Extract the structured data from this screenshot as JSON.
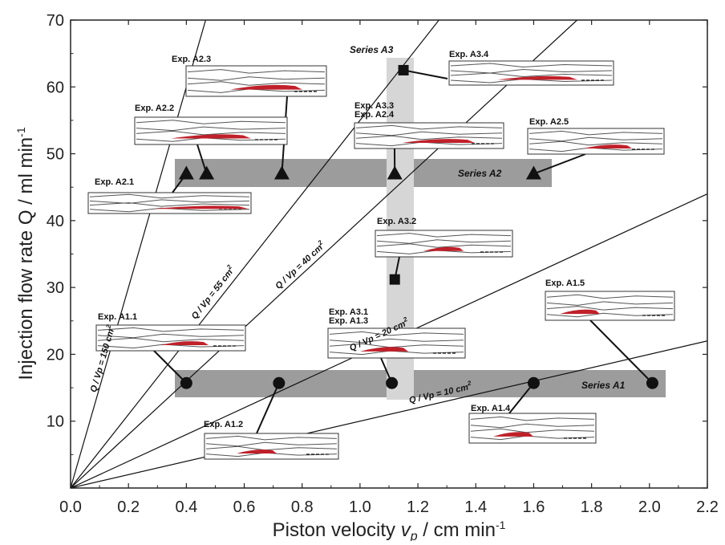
{
  "chart_data": {
    "type": "scatter",
    "xlabel": "Piston velocity",
    "xlabel_symbol": "v",
    "xlabel_subscript": "p",
    "xlabel_unit": " / cm min",
    "xlabel_exp": "-1",
    "ylabel": "Injection flow rate Q / ml min",
    "ylabel_exp": "-1",
    "xlim": [
      0,
      2.2
    ],
    "ylim": [
      0,
      70
    ],
    "x_ticks": [
      "0.0",
      "0.2",
      "0.4",
      "0.6",
      "0.8",
      "1.0",
      "1.2",
      "1.4",
      "1.6",
      "1.8",
      "2.0",
      "2.2"
    ],
    "y_ticks": [
      "10",
      "20",
      "30",
      "40",
      "50",
      "60",
      "70"
    ],
    "ratio_lines": [
      {
        "slope": 150,
        "label": "Q / Vp = 150 cm",
        "sup": "2"
      },
      {
        "slope": 55,
        "label": "Q / Vp = 55 cm",
        "sup": "2"
      },
      {
        "slope": 40,
        "label": "Q / Vp = 40 cm",
        "sup": "2"
      },
      {
        "slope": 20,
        "label": "Q / Vp = 20 cm",
        "sup": "2"
      },
      {
        "slope": 10,
        "label": "Q / Vp = 10 cm",
        "sup": "2"
      }
    ],
    "series": [
      {
        "name": "Series A1",
        "marker": "circle",
        "points": [
          [
            0.4,
            15.7
          ],
          [
            0.72,
            15.7
          ],
          [
            1.11,
            15.7
          ],
          [
            1.6,
            15.7
          ],
          [
            2.01,
            15.7
          ]
        ]
      },
      {
        "name": "Series A2",
        "marker": "triangle",
        "points": [
          [
            0.4,
            47
          ],
          [
            0.47,
            47
          ],
          [
            0.73,
            47
          ],
          [
            1.12,
            47
          ],
          [
            1.6,
            47
          ]
        ]
      },
      {
        "name": "Series A3",
        "marker": "square",
        "points": [
          [
            1.15,
            62.5
          ],
          [
            1.12,
            31.2
          ]
        ]
      }
    ],
    "experiment_labels": [
      {
        "label": "Exp. A2.3"
      },
      {
        "label": "Exp. A2.2"
      },
      {
        "label": "Exp. A2.1"
      },
      {
        "label": "Exp. A3.3"
      },
      {
        "label": "Exp. A2.4"
      },
      {
        "label": "Exp. A3.4"
      },
      {
        "label": "Exp. A2.5"
      },
      {
        "label": "Exp. A3.2"
      },
      {
        "label": "Exp. A1.1"
      },
      {
        "label": "Exp. A3.1"
      },
      {
        "label": "Exp. A1.3"
      },
      {
        "label": "Exp. A1.5"
      },
      {
        "label": "Exp. A1.2"
      },
      {
        "label": "Exp. A1.4"
      }
    ],
    "colors": {
      "band_dark": "#9c9c9c",
      "band_light": "#d6d6d6",
      "axis": "#222222",
      "line": "#111111",
      "marker": "#111111",
      "injection": "#c0202a",
      "box_stroke": "#333333"
    },
    "grid": false
  }
}
